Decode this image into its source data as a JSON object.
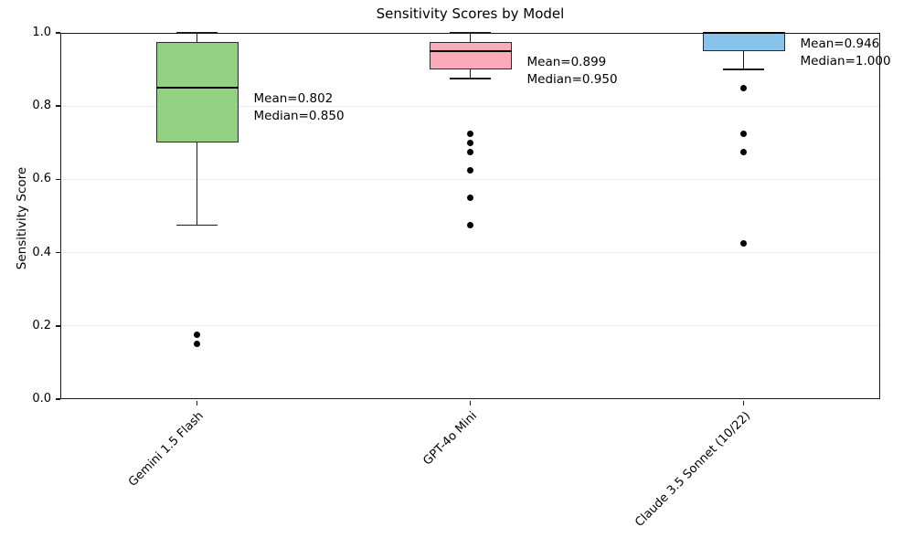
{
  "chart_data": {
    "type": "box",
    "title": "Sensitivity Scores by Model",
    "xlabel": "",
    "ylabel": "Sensitivity Score",
    "ylim": [
      0.0,
      1.0
    ],
    "ytick_labels": [
      "0.0",
      "0.2",
      "0.4",
      "0.6",
      "0.8",
      "1.0"
    ],
    "grid": "horizontal",
    "legend": "none",
    "categories": [
      "Gemini 1.5 Flash",
      "GPT-4o Mini",
      "Claude 3.5 Sonnet (10/22)"
    ],
    "series": [
      {
        "name": "Gemini 1.5 Flash",
        "box_color": "#93d183",
        "whisker_low": 0.475,
        "q1": 0.7,
        "median": 0.85,
        "q3": 0.975,
        "whisker_high": 1.0,
        "outliers": [
          0.175,
          0.15
        ],
        "mean": 0.802,
        "annotation_lines": [
          "Mean=0.802",
          "Median=0.850"
        ]
      },
      {
        "name": "GPT-4o Mini",
        "box_color": "#faaab9",
        "whisker_low": 0.875,
        "q1": 0.9,
        "median": 0.95,
        "q3": 0.975,
        "whisker_high": 1.0,
        "outliers": [
          0.725,
          0.7,
          0.675,
          0.625,
          0.55,
          0.475
        ],
        "mean": 0.899,
        "annotation_lines": [
          "Mean=0.899",
          "Median=0.950"
        ]
      },
      {
        "name": "Claude 3.5 Sonnet (10/22)",
        "box_color": "#87c3eb",
        "whisker_low": 0.9,
        "q1": 0.95,
        "median": 1.0,
        "q3": 1.0,
        "whisker_high": 1.0,
        "outliers": [
          0.85,
          0.725,
          0.675,
          0.425
        ],
        "mean": 0.946,
        "annotation_lines": [
          "Mean=0.946",
          "Median=1.000"
        ]
      }
    ],
    "colors": {
      "edge": "#1a1a1a",
      "grid": "#e8e8e8",
      "outlier": "#000000",
      "background": "#ffffff"
    }
  }
}
